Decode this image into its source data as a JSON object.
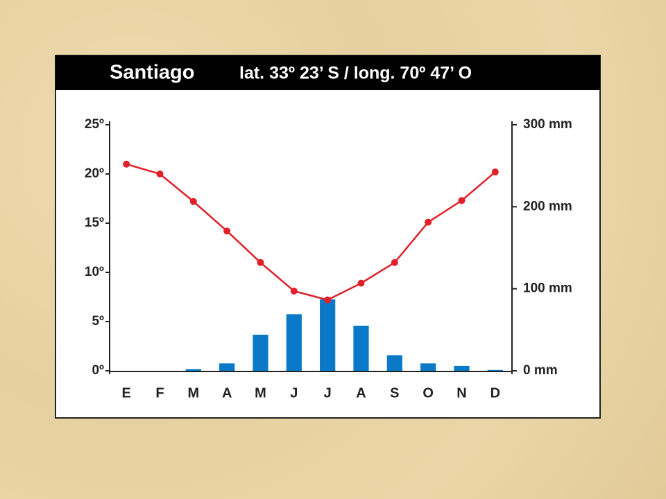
{
  "chart_data": {
    "type": "bar",
    "title": "Santiago",
    "subtitle": "lat. 33º 23’ S / long. 70º 47’ O",
    "categories": [
      "E",
      "F",
      "M",
      "A",
      "M",
      "J",
      "J",
      "A",
      "S",
      "O",
      "N",
      "D"
    ],
    "series": [
      {
        "type": "bar",
        "axis": "y2",
        "color": "#0a7ac8",
        "values": [
          0,
          0,
          2,
          9,
          44,
          69,
          87,
          55,
          19,
          9,
          6,
          1
        ]
      },
      {
        "type": "line",
        "axis": "y",
        "color": "#e0202a",
        "values": [
          21,
          20,
          17.2,
          14.2,
          11,
          8.1,
          7.2,
          8.9,
          11,
          15.1,
          17.3,
          20.2
        ]
      }
    ],
    "ylim": [
      0,
      25
    ],
    "yticks": [
      {
        "value": 0,
        "label": "0º"
      },
      {
        "value": 5,
        "label": "5º"
      },
      {
        "value": 10,
        "label": "10º"
      },
      {
        "value": 15,
        "label": "15º"
      },
      {
        "value": 20,
        "label": "20º"
      },
      {
        "value": 25,
        "label": "25º"
      }
    ],
    "y2lim": [
      0,
      300
    ],
    "y2ticks": [
      {
        "value": 0,
        "label": "0 mm"
      },
      {
        "value": 100,
        "label": "100 mm"
      },
      {
        "value": 200,
        "label": "200 mm"
      },
      {
        "value": 300,
        "label": "300 mm"
      }
    ],
    "grid": false
  }
}
